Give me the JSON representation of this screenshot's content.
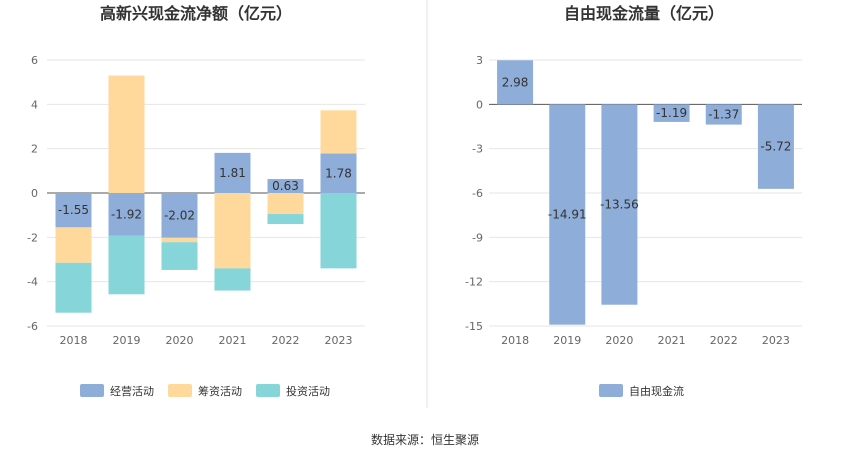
{
  "source": "数据来源：恒生聚源",
  "colors": {
    "operating": "#8eadd9",
    "financing": "#fed99b",
    "investing": "#86d5d9",
    "free_cash_flow": "#8eadd9",
    "divider": "#e0e0e0"
  },
  "chart_data": [
    {
      "type": "bar",
      "stacked": true,
      "title": "高新兴现金流净额（亿元）",
      "categories": [
        "2018",
        "2019",
        "2020",
        "2021",
        "2022",
        "2023"
      ],
      "ylim": [
        -6,
        6
      ],
      "yticks": [
        -6,
        -4,
        -2,
        0,
        2,
        4,
        6
      ],
      "grid": true,
      "legend_position": "bottom",
      "series": [
        {
          "name": "经营活动",
          "values": [
            -1.55,
            -1.92,
            -2.02,
            1.81,
            0.63,
            1.78
          ],
          "labels": [
            "-1.55",
            "-1.92",
            "-2.02",
            "1.81",
            "0.63",
            "1.78"
          ]
        },
        {
          "name": "筹资活动",
          "values": [
            -1.6,
            5.3,
            -0.2,
            -3.4,
            -0.95,
            1.95
          ]
        },
        {
          "name": "投资活动",
          "values": [
            -2.25,
            -2.65,
            -1.25,
            -1.0,
            -0.45,
            -3.4
          ]
        }
      ]
    },
    {
      "type": "bar",
      "title": "自由现金流量（亿元）",
      "categories": [
        "2018",
        "2019",
        "2020",
        "2021",
        "2022",
        "2023"
      ],
      "ylim": [
        -15,
        3
      ],
      "yticks": [
        -15,
        -12,
        -9,
        -6,
        -3,
        0,
        3
      ],
      "grid": true,
      "legend_position": "bottom",
      "series": [
        {
          "name": "自由现金流",
          "values": [
            2.98,
            -14.91,
            -13.56,
            -1.19,
            -1.37,
            -5.72
          ],
          "labels": [
            "2.98",
            "-14.91",
            "-13.56",
            "-1.19",
            "-1.37",
            "-5.72"
          ]
        }
      ]
    }
  ]
}
